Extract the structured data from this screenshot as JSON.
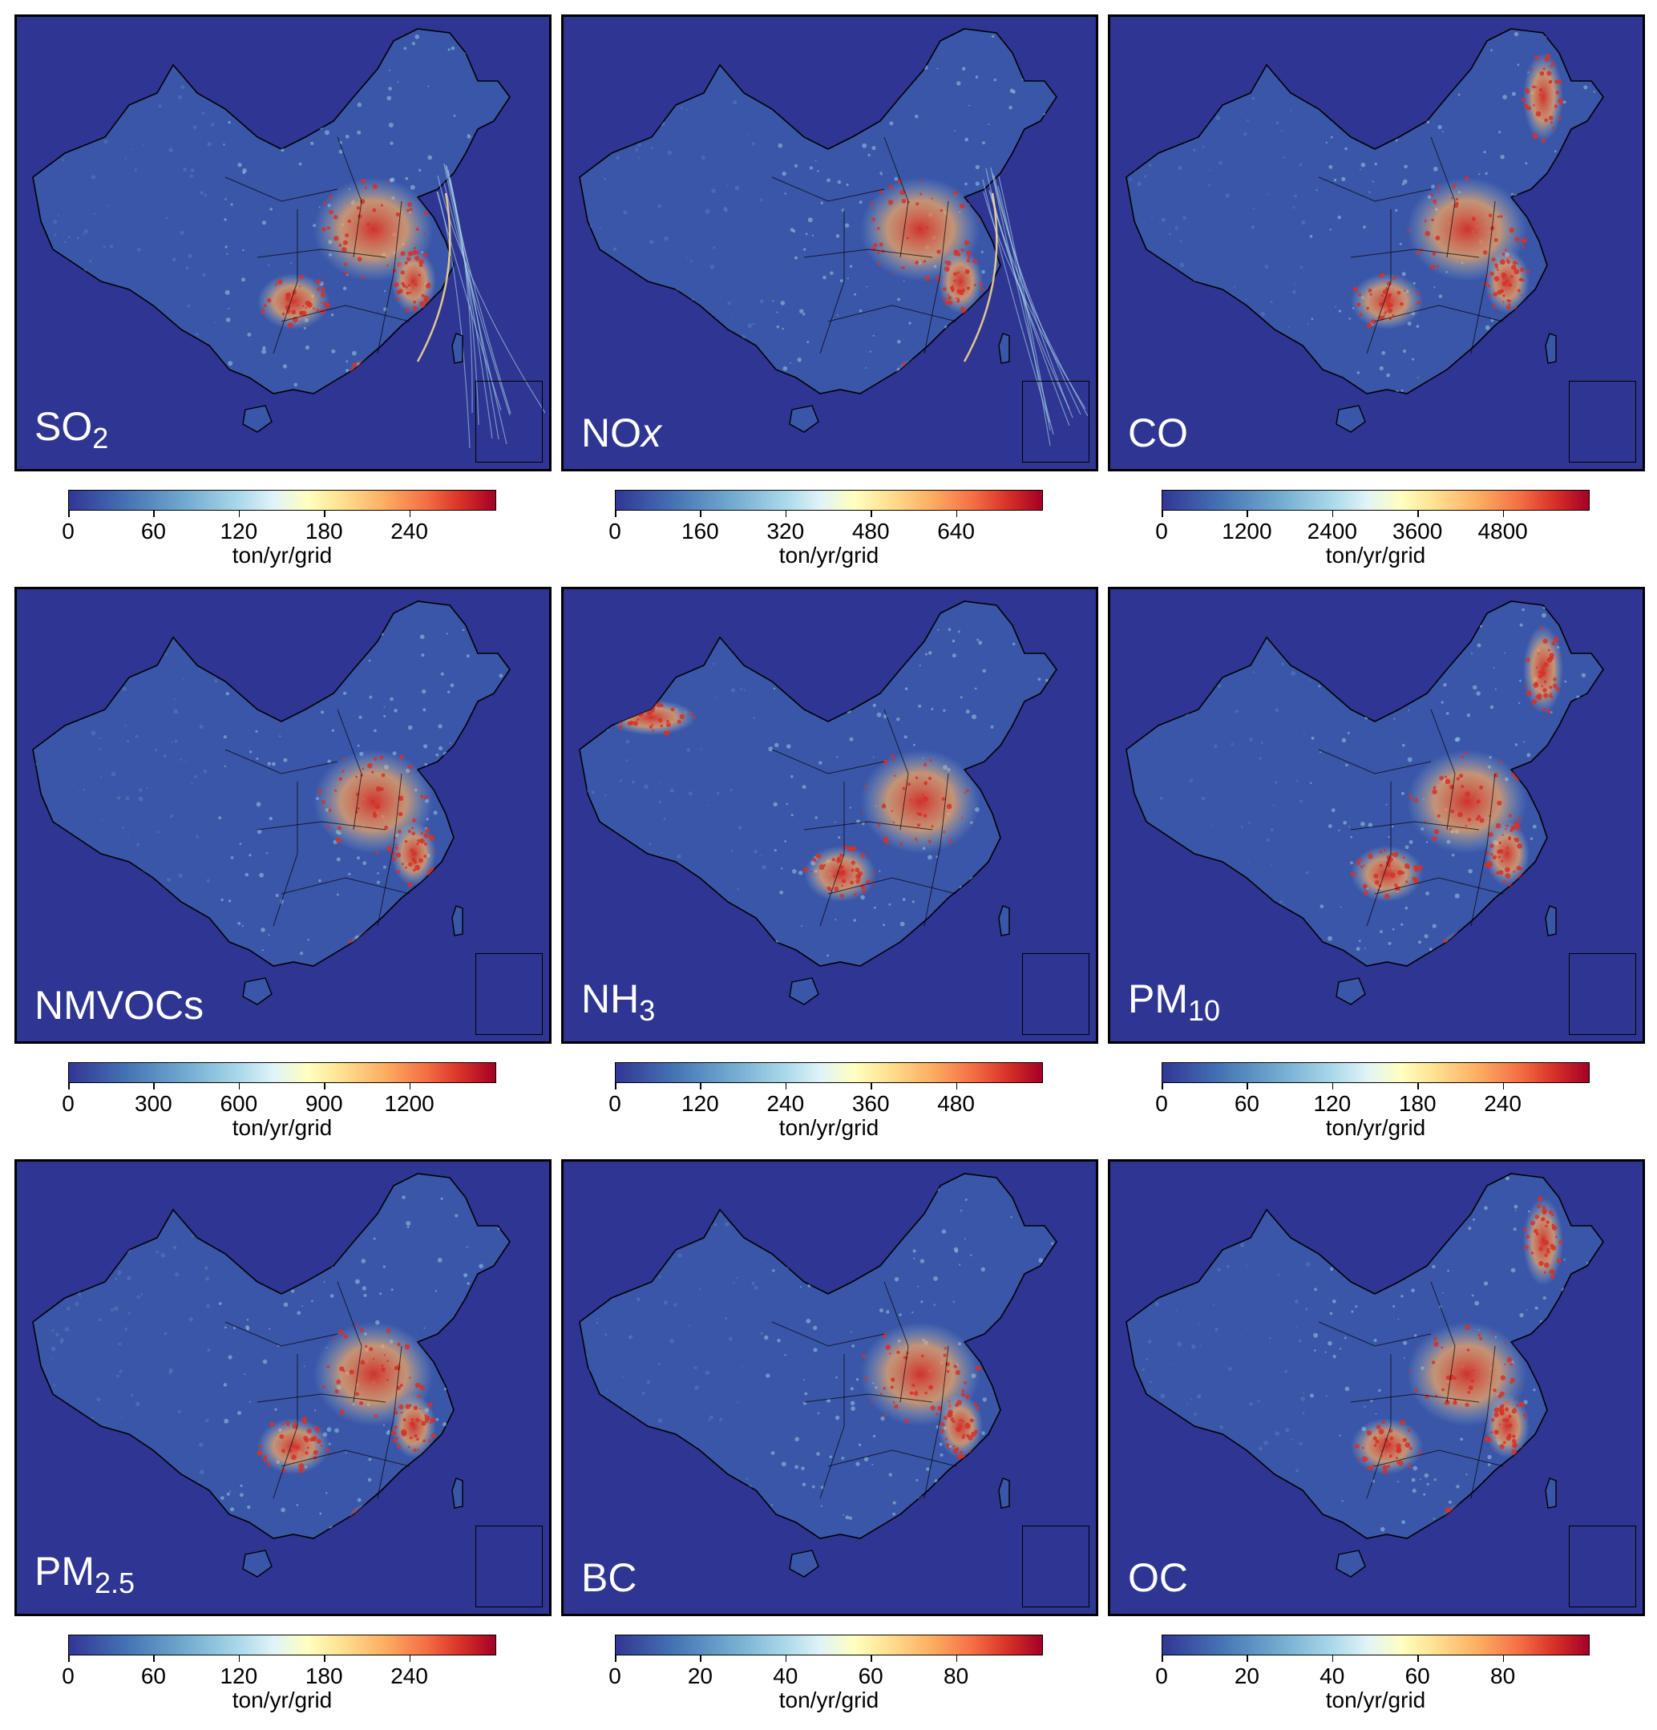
{
  "panels": [
    {
      "id": "so2",
      "label_main": "SO",
      "label_sub": "2",
      "label_italic": "",
      "ticks": [
        "0",
        "60",
        "120",
        "180",
        "240"
      ],
      "tick_values": [
        0,
        60,
        120,
        180,
        240
      ],
      "max": 300,
      "unit": "ton/yr/grid",
      "hot": [
        "north-china",
        "east-coast",
        "south-coast",
        "sichuan",
        "shipping"
      ]
    },
    {
      "id": "nox",
      "label_main": "NO",
      "label_sub": "",
      "label_italic": "x",
      "ticks": [
        "0",
        "160",
        "320",
        "480",
        "640"
      ],
      "tick_values": [
        0,
        160,
        320,
        480,
        640
      ],
      "max": 800,
      "unit": "ton/yr/grid",
      "hot": [
        "north-china",
        "east-coast",
        "south-coast",
        "shipping"
      ]
    },
    {
      "id": "co",
      "label_main": "CO",
      "label_sub": "",
      "label_italic": "",
      "ticks": [
        "0",
        "1200",
        "2400",
        "3600",
        "4800"
      ],
      "tick_values": [
        0,
        1200,
        2400,
        3600,
        4800
      ],
      "max": 6000,
      "unit": "ton/yr/grid",
      "hot": [
        "north-china",
        "east-coast",
        "sichuan",
        "northeast"
      ]
    },
    {
      "id": "nmvocs",
      "label_main": "NMVOCs",
      "label_sub": "",
      "label_italic": "",
      "ticks": [
        "0",
        "300",
        "600",
        "900",
        "1200"
      ],
      "tick_values": [
        0,
        300,
        600,
        900,
        1200
      ],
      "max": 1500,
      "unit": "ton/yr/grid",
      "hot": [
        "north-china",
        "east-coast",
        "south-coast"
      ]
    },
    {
      "id": "nh3",
      "label_main": "NH",
      "label_sub": "3",
      "label_italic": "",
      "ticks": [
        "0",
        "120",
        "240",
        "360",
        "480"
      ],
      "tick_values": [
        0,
        120,
        240,
        360,
        480
      ],
      "max": 600,
      "unit": "ton/yr/grid",
      "hot": [
        "north-china",
        "sichuan",
        "xinjiang"
      ]
    },
    {
      "id": "pm10",
      "label_main": "PM",
      "label_sub": "10",
      "label_italic": "",
      "ticks": [
        "0",
        "60",
        "120",
        "180",
        "240"
      ],
      "tick_values": [
        0,
        60,
        120,
        180,
        240
      ],
      "max": 300,
      "unit": "ton/yr/grid",
      "hot": [
        "north-china",
        "east-coast",
        "sichuan",
        "south-coast",
        "northeast"
      ]
    },
    {
      "id": "pm25",
      "label_main": "PM",
      "label_sub": "2.5",
      "label_italic": "",
      "ticks": [
        "0",
        "60",
        "120",
        "180",
        "240"
      ],
      "tick_values": [
        0,
        60,
        120,
        180,
        240
      ],
      "max": 300,
      "unit": "ton/yr/grid",
      "hot": [
        "north-china",
        "east-coast",
        "sichuan",
        "south-coast"
      ]
    },
    {
      "id": "bc",
      "label_main": "BC",
      "label_sub": "",
      "label_italic": "",
      "ticks": [
        "0",
        "20",
        "40",
        "60",
        "80"
      ],
      "tick_values": [
        0,
        20,
        40,
        60,
        80
      ],
      "max": 100,
      "unit": "ton/yr/grid",
      "hot": [
        "north-china",
        "east-coast"
      ]
    },
    {
      "id": "oc",
      "label_main": "OC",
      "label_sub": "",
      "label_italic": "",
      "ticks": [
        "0",
        "20",
        "40",
        "60",
        "80"
      ],
      "tick_values": [
        0,
        20,
        40,
        60,
        80
      ],
      "max": 100,
      "unit": "ton/yr/grid",
      "hot": [
        "north-china",
        "sichuan",
        "east-coast",
        "south-coast",
        "northeast"
      ]
    }
  ],
  "colors": {
    "ocean": "#2e3592",
    "land": "#3a56a8",
    "mid": "#8fc3dd",
    "warm": "#fdae61",
    "hot": "#d73027",
    "border": "#000000"
  }
}
